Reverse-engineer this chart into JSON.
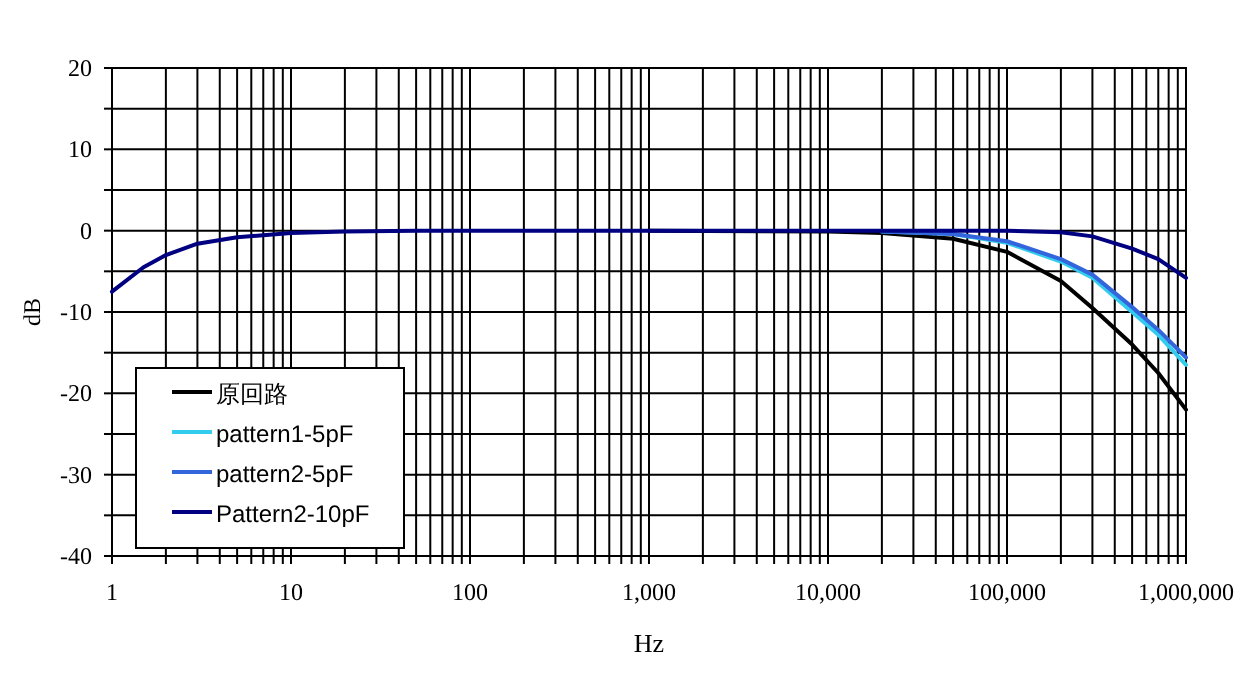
{
  "chart_data": {
    "type": "line",
    "xlabel": "Hz",
    "ylabel": "dB",
    "log": "x",
    "grid": true,
    "legend": "bottom left",
    "line_style": "solid",
    "marker": "none",
    "x": [
      1,
      1.5,
      2,
      3,
      5,
      10,
      20,
      50,
      100,
      1000,
      10000,
      20000,
      50000,
      100000,
      200000,
      300000,
      500000,
      700000,
      1000000
    ],
    "series": [
      {
        "name": "原回路",
        "color": "#000000",
        "values": [
          null,
          null,
          null,
          null,
          null,
          null,
          null,
          null,
          null,
          0,
          -0.1,
          -0.3,
          -1,
          -2.6,
          -6.2,
          -9.5,
          -14,
          -17.5,
          -22
        ]
      },
      {
        "name": "pattern1-5pF",
        "color": "#33ccee",
        "values": [
          null,
          null,
          null,
          null,
          null,
          null,
          null,
          null,
          null,
          null,
          null,
          -0.1,
          -0.4,
          -1.5,
          -3.8,
          -5.8,
          -10,
          -12.8,
          -16.5
        ]
      },
      {
        "name": "pattern2-5pF",
        "color": "#3366dd",
        "values": [
          null,
          null,
          null,
          null,
          null,
          null,
          null,
          null,
          null,
          null,
          null,
          -0.1,
          -0.4,
          -1.3,
          -3.5,
          -5.4,
          -9.4,
          -12.2,
          -15.6
        ]
      },
      {
        "name": "Pattern2-10pF",
        "color": "#000080",
        "values": [
          -7.5,
          -4.5,
          -3,
          -1.6,
          -0.8,
          -0.3,
          -0.1,
          0,
          0,
          0,
          0,
          0,
          0,
          0,
          -0.2,
          -0.7,
          -2.2,
          -3.5,
          -5.8
        ]
      }
    ],
    "xlim": [
      1,
      1000000
    ],
    "xticks": [
      {
        "value": 1,
        "label": "1"
      },
      {
        "value": 2,
        "label": null
      },
      {
        "value": 3,
        "label": null
      },
      {
        "value": 4,
        "label": null
      },
      {
        "value": 5,
        "label": null
      },
      {
        "value": 6,
        "label": null
      },
      {
        "value": 7,
        "label": null
      },
      {
        "value": 8,
        "label": null
      },
      {
        "value": 9,
        "label": null
      },
      {
        "value": 10,
        "label": "10"
      },
      {
        "value": 20,
        "label": null
      },
      {
        "value": 30,
        "label": null
      },
      {
        "value": 40,
        "label": null
      },
      {
        "value": 50,
        "label": null
      },
      {
        "value": 60,
        "label": null
      },
      {
        "value": 70,
        "label": null
      },
      {
        "value": 80,
        "label": null
      },
      {
        "value": 90,
        "label": null
      },
      {
        "value": 100,
        "label": "100"
      },
      {
        "value": 200,
        "label": null
      },
      {
        "value": 300,
        "label": null
      },
      {
        "value": 400,
        "label": null
      },
      {
        "value": 500,
        "label": null
      },
      {
        "value": 600,
        "label": null
      },
      {
        "value": 700,
        "label": null
      },
      {
        "value": 800,
        "label": null
      },
      {
        "value": 900,
        "label": null
      },
      {
        "value": 1000,
        "label": "1,000"
      },
      {
        "value": 2000,
        "label": null
      },
      {
        "value": 3000,
        "label": null
      },
      {
        "value": 4000,
        "label": null
      },
      {
        "value": 5000,
        "label": null
      },
      {
        "value": 6000,
        "label": null
      },
      {
        "value": 7000,
        "label": null
      },
      {
        "value": 8000,
        "label": null
      },
      {
        "value": 9000,
        "label": null
      },
      {
        "value": 10000,
        "label": "10,000"
      },
      {
        "value": 20000,
        "label": null
      },
      {
        "value": 30000,
        "label": null
      },
      {
        "value": 40000,
        "label": null
      },
      {
        "value": 50000,
        "label": null
      },
      {
        "value": 60000,
        "label": null
      },
      {
        "value": 70000,
        "label": null
      },
      {
        "value": 80000,
        "label": null
      },
      {
        "value": 90000,
        "label": null
      },
      {
        "value": 100000,
        "label": "100,000"
      },
      {
        "value": 200000,
        "label": null
      },
      {
        "value": 300000,
        "label": null
      },
      {
        "value": 400000,
        "label": null
      },
      {
        "value": 500000,
        "label": null
      },
      {
        "value": 600000,
        "label": null
      },
      {
        "value": 700000,
        "label": null
      },
      {
        "value": 800000,
        "label": null
      },
      {
        "value": 900000,
        "label": null
      },
      {
        "value": 1000000,
        "label": "1,000,000"
      }
    ],
    "ylim": [
      -40,
      20
    ],
    "yticks": [
      -40,
      {
        "value": -35,
        "label": null
      },
      -30,
      {
        "value": -25,
        "label": null
      },
      -20,
      {
        "value": -15,
        "label": null
      },
      -10,
      {
        "value": -5,
        "label": null
      },
      0,
      {
        "value": 5,
        "label": null
      },
      10,
      {
        "value": 15,
        "label": null
      },
      20
    ]
  }
}
